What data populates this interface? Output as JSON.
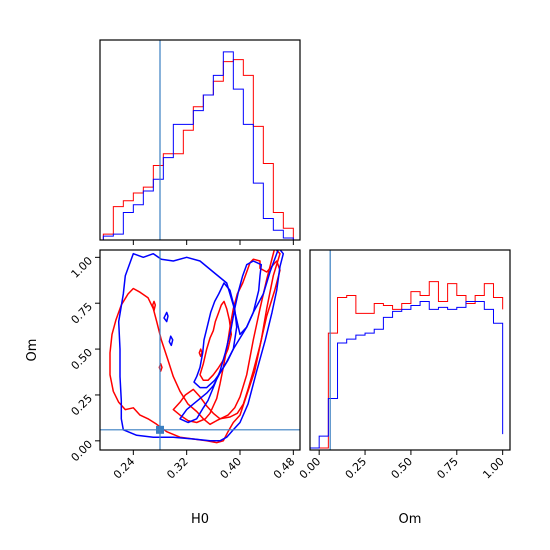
{
  "chart_data": {
    "type": "corner",
    "parameters": [
      "H0",
      "Om"
    ],
    "truth": {
      "H0": 0.28,
      "Om": 0.06,
      "color": "#3a7fc1"
    },
    "ranges": {
      "H0": [
        0.19,
        0.49
      ],
      "Om": [
        -0.05,
        1.04
      ]
    },
    "colors": {
      "red": "#ff0000",
      "blue": "#0000ff"
    },
    "tick_labels": {
      "H0": [
        "0.24",
        "0.32",
        "0.40",
        "0.48"
      ],
      "Om": [
        "0.00",
        "0.25",
        "0.50",
        "0.75",
        "1.00"
      ]
    },
    "axis_labels": {
      "x_bottom_left": "H0",
      "y_left": "Om",
      "x_bottom_right": "Om"
    },
    "hist_H0": {
      "edges": [
        0.195,
        0.21,
        0.225,
        0.24,
        0.255,
        0.27,
        0.285,
        0.3,
        0.315,
        0.33,
        0.345,
        0.36,
        0.375,
        0.39,
        0.405,
        0.42,
        0.435,
        0.45,
        0.465,
        0.48
      ],
      "red": [
        0.03,
        0.17,
        0.2,
        0.24,
        0.27,
        0.38,
        0.44,
        0.44,
        0.56,
        0.68,
        0.74,
        0.81,
        0.91,
        0.92,
        0.84,
        0.58,
        0.39,
        0.14,
        0.06
      ],
      "blue": [
        0.02,
        0.03,
        0.14,
        0.18,
        0.25,
        0.31,
        0.42,
        0.59,
        0.59,
        0.66,
        0.74,
        0.84,
        0.96,
        0.77,
        0.59,
        0.29,
        0.11,
        0.05,
        0.01
      ]
    },
    "hist_Om": {
      "edges": [
        -0.05,
        0.0,
        0.05,
        0.1,
        0.15,
        0.2,
        0.25,
        0.3,
        0.35,
        0.4,
        0.45,
        0.5,
        0.55,
        0.6,
        0.65,
        0.7,
        0.75,
        0.8,
        0.85,
        0.9,
        0.95,
        1.0
      ],
      "red": [
        0.0,
        0.0,
        0.58,
        0.76,
        0.77,
        0.68,
        0.68,
        0.73,
        0.72,
        0.7,
        0.73,
        0.79,
        0.77,
        0.84,
        0.74,
        0.83,
        0.77,
        0.73,
        0.77,
        0.83,
        0.76,
        0.7
      ],
      "blue": [
        0.0,
        0.06,
        0.25,
        0.53,
        0.55,
        0.57,
        0.58,
        0.6,
        0.66,
        0.69,
        0.7,
        0.72,
        0.74,
        0.7,
        0.71,
        0.7,
        0.71,
        0.74,
        0.74,
        0.7,
        0.63,
        0.07
      ]
    },
    "contours": [
      {
        "color": "red",
        "points": [
          [
            0.218,
            0.21
          ],
          [
            0.228,
            0.17
          ],
          [
            0.24,
            0.18
          ],
          [
            0.25,
            0.14
          ],
          [
            0.262,
            0.12
          ],
          [
            0.275,
            0.09
          ],
          [
            0.29,
            0.05
          ],
          [
            0.31,
            0.02
          ],
          [
            0.33,
            0.01
          ],
          [
            0.35,
            0.0
          ],
          [
            0.365,
            -0.01
          ],
          [
            0.375,
            0.0
          ],
          [
            0.382,
            0.05
          ],
          [
            0.39,
            0.1
          ],
          [
            0.4,
            0.14
          ],
          [
            0.41,
            0.25
          ],
          [
            0.422,
            0.38
          ],
          [
            0.432,
            0.55
          ],
          [
            0.44,
            0.72
          ],
          [
            0.45,
            0.9
          ],
          [
            0.46,
            1.02
          ],
          [
            0.452,
            1.05
          ],
          [
            0.44,
            0.88
          ],
          [
            0.43,
            0.72
          ],
          [
            0.42,
            0.55
          ],
          [
            0.41,
            0.36
          ],
          [
            0.4,
            0.24
          ],
          [
            0.392,
            0.18
          ],
          [
            0.382,
            0.14
          ],
          [
            0.365,
            0.11
          ],
          [
            0.355,
            0.09
          ],
          [
            0.345,
            0.12
          ],
          [
            0.335,
            0.16
          ],
          [
            0.322,
            0.2
          ],
          [
            0.31,
            0.27
          ],
          [
            0.3,
            0.35
          ],
          [
            0.292,
            0.44
          ],
          [
            0.282,
            0.55
          ],
          [
            0.275,
            0.65
          ],
          [
            0.27,
            0.72
          ],
          [
            0.262,
            0.78
          ],
          [
            0.25,
            0.81
          ],
          [
            0.24,
            0.83
          ],
          [
            0.232,
            0.8
          ],
          [
            0.222,
            0.74
          ],
          [
            0.214,
            0.66
          ],
          [
            0.208,
            0.58
          ],
          [
            0.205,
            0.48
          ],
          [
            0.205,
            0.36
          ],
          [
            0.21,
            0.27
          ],
          [
            0.218,
            0.21
          ]
        ]
      },
      {
        "color": "red",
        "points": [
          [
            0.3,
            0.17
          ],
          [
            0.31,
            0.14
          ],
          [
            0.322,
            0.11
          ],
          [
            0.335,
            0.1
          ],
          [
            0.348,
            0.12
          ],
          [
            0.355,
            0.15
          ],
          [
            0.36,
            0.19
          ],
          [
            0.365,
            0.23
          ],
          [
            0.37,
            0.31
          ],
          [
            0.375,
            0.4
          ],
          [
            0.38,
            0.5
          ],
          [
            0.385,
            0.62
          ],
          [
            0.39,
            0.72
          ],
          [
            0.396,
            0.8
          ],
          [
            0.404,
            0.86
          ],
          [
            0.41,
            0.92
          ],
          [
            0.415,
            0.97
          ],
          [
            0.42,
            0.99
          ],
          [
            0.43,
            0.98
          ],
          [
            0.43,
            0.94
          ],
          [
            0.44,
            0.92
          ],
          [
            0.455,
            0.98
          ],
          [
            0.46,
            0.93
          ],
          [
            0.452,
            0.82
          ],
          [
            0.44,
            0.68
          ],
          [
            0.43,
            0.52
          ],
          [
            0.42,
            0.38
          ],
          [
            0.412,
            0.28
          ],
          [
            0.405,
            0.2
          ],
          [
            0.396,
            0.15
          ],
          [
            0.385,
            0.13
          ],
          [
            0.37,
            0.12
          ],
          [
            0.36,
            0.15
          ],
          [
            0.35,
            0.19
          ],
          [
            0.34,
            0.24
          ],
          [
            0.33,
            0.28
          ],
          [
            0.318,
            0.25
          ],
          [
            0.31,
            0.21
          ],
          [
            0.3,
            0.17
          ]
        ]
      },
      {
        "color": "red",
        "points": [
          [
            0.34,
            0.36
          ],
          [
            0.345,
            0.42
          ],
          [
            0.35,
            0.5
          ],
          [
            0.355,
            0.56
          ],
          [
            0.36,
            0.6
          ],
          [
            0.363,
            0.65
          ],
          [
            0.368,
            0.7
          ],
          [
            0.372,
            0.74
          ],
          [
            0.376,
            0.76
          ],
          [
            0.38,
            0.72
          ],
          [
            0.384,
            0.66
          ],
          [
            0.387,
            0.58
          ],
          [
            0.382,
            0.5
          ],
          [
            0.375,
            0.44
          ],
          [
            0.368,
            0.4
          ],
          [
            0.36,
            0.36
          ],
          [
            0.352,
            0.33
          ],
          [
            0.345,
            0.33
          ],
          [
            0.34,
            0.36
          ]
        ]
      },
      {
        "color": "red",
        "points": [
          [
            0.269,
            0.74
          ],
          [
            0.271,
            0.71
          ],
          [
            0.273,
            0.74
          ],
          [
            0.271,
            0.76
          ],
          [
            0.269,
            0.74
          ]
        ]
      },
      {
        "color": "red",
        "points": [
          [
            0.279,
            0.4
          ],
          [
            0.281,
            0.38
          ],
          [
            0.283,
            0.4
          ],
          [
            0.281,
            0.42
          ],
          [
            0.279,
            0.4
          ]
        ]
      },
      {
        "color": "red",
        "points": [
          [
            0.339,
            0.48
          ],
          [
            0.341,
            0.46
          ],
          [
            0.343,
            0.48
          ],
          [
            0.341,
            0.5
          ],
          [
            0.339,
            0.48
          ]
        ]
      },
      {
        "color": "blue",
        "points": [
          [
            0.225,
            0.06
          ],
          [
            0.245,
            0.03
          ],
          [
            0.27,
            0.02
          ],
          [
            0.3,
            0.02
          ],
          [
            0.33,
            0.01
          ],
          [
            0.355,
            0.0
          ],
          [
            0.37,
            0.0
          ],
          [
            0.38,
            0.02
          ],
          [
            0.39,
            0.06
          ],
          [
            0.4,
            0.1
          ],
          [
            0.412,
            0.2
          ],
          [
            0.425,
            0.38
          ],
          [
            0.438,
            0.55
          ],
          [
            0.448,
            0.7
          ],
          [
            0.455,
            0.82
          ],
          [
            0.46,
            0.95
          ],
          [
            0.465,
            1.02
          ],
          [
            0.458,
            1.05
          ],
          [
            0.445,
            0.92
          ],
          [
            0.435,
            0.8
          ],
          [
            0.42,
            0.7
          ],
          [
            0.41,
            0.62
          ],
          [
            0.4,
            0.58
          ],
          [
            0.39,
            0.74
          ],
          [
            0.38,
            0.86
          ],
          [
            0.36,
            0.92
          ],
          [
            0.34,
            0.98
          ],
          [
            0.32,
            1.0
          ],
          [
            0.3,
            0.98
          ],
          [
            0.282,
            0.99
          ],
          [
            0.27,
            1.02
          ],
          [
            0.255,
            1.0
          ],
          [
            0.24,
            1.02
          ],
          [
            0.228,
            0.9
          ],
          [
            0.225,
            0.8
          ],
          [
            0.218,
            0.65
          ],
          [
            0.22,
            0.5
          ],
          [
            0.22,
            0.35
          ],
          [
            0.222,
            0.22
          ],
          [
            0.222,
            0.12
          ],
          [
            0.225,
            0.06
          ]
        ]
      },
      {
        "color": "blue",
        "points": [
          [
            0.31,
            0.12
          ],
          [
            0.322,
            0.1
          ],
          [
            0.335,
            0.12
          ],
          [
            0.345,
            0.18
          ],
          [
            0.352,
            0.22
          ],
          [
            0.36,
            0.29
          ],
          [
            0.37,
            0.38
          ],
          [
            0.378,
            0.48
          ],
          [
            0.386,
            0.6
          ],
          [
            0.392,
            0.72
          ],
          [
            0.398,
            0.82
          ],
          [
            0.404,
            0.9
          ],
          [
            0.41,
            0.96
          ],
          [
            0.42,
            0.98
          ],
          [
            0.432,
            0.96
          ],
          [
            0.43,
            0.9
          ],
          [
            0.428,
            0.82
          ],
          [
            0.42,
            0.7
          ],
          [
            0.41,
            0.62
          ],
          [
            0.4,
            0.56
          ],
          [
            0.39,
            0.5
          ],
          [
            0.38,
            0.43
          ],
          [
            0.37,
            0.37
          ],
          [
            0.36,
            0.3
          ],
          [
            0.35,
            0.26
          ],
          [
            0.34,
            0.23
          ],
          [
            0.33,
            0.2
          ],
          [
            0.32,
            0.17
          ],
          [
            0.31,
            0.12
          ]
        ]
      },
      {
        "color": "blue",
        "points": [
          [
            0.331,
            0.32
          ],
          [
            0.335,
            0.35
          ],
          [
            0.34,
            0.4
          ],
          [
            0.344,
            0.48
          ],
          [
            0.346,
            0.55
          ],
          [
            0.35,
            0.61
          ],
          [
            0.356,
            0.7
          ],
          [
            0.362,
            0.76
          ],
          [
            0.368,
            0.8
          ],
          [
            0.376,
            0.86
          ],
          [
            0.385,
            0.82
          ],
          [
            0.392,
            0.72
          ],
          [
            0.395,
            0.62
          ],
          [
            0.39,
            0.5
          ],
          [
            0.382,
            0.44
          ],
          [
            0.372,
            0.38
          ],
          [
            0.362,
            0.33
          ],
          [
            0.35,
            0.29
          ],
          [
            0.34,
            0.29
          ],
          [
            0.331,
            0.32
          ]
        ]
      },
      {
        "color": "blue",
        "points": [
          [
            0.286,
            0.67
          ],
          [
            0.29,
            0.65
          ],
          [
            0.292,
            0.68
          ],
          [
            0.29,
            0.7
          ],
          [
            0.286,
            0.67
          ]
        ]
      },
      {
        "color": "blue",
        "points": [
          [
            0.294,
            0.54
          ],
          [
            0.297,
            0.52
          ],
          [
            0.299,
            0.55
          ],
          [
            0.296,
            0.57
          ],
          [
            0.294,
            0.54
          ]
        ]
      }
    ]
  }
}
